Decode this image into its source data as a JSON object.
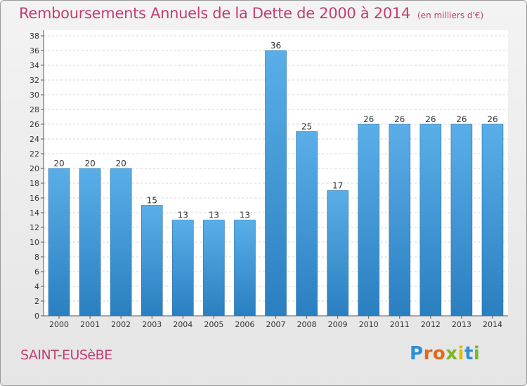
{
  "chart_data": {
    "type": "bar",
    "title": "Remboursements Annuels de la Dette de 2000 à 2014",
    "unit_label": "(en milliers d'€)",
    "categories": [
      "2000",
      "2001",
      "2002",
      "2003",
      "2004",
      "2005",
      "2006",
      "2007",
      "2008",
      "2009",
      "2010",
      "2011",
      "2012",
      "2013",
      "2014"
    ],
    "values": [
      20,
      20,
      20,
      15,
      13,
      13,
      13,
      36,
      25,
      17,
      26,
      26,
      26,
      26,
      26
    ],
    "y_ticks": [
      0,
      2,
      4,
      6,
      8,
      10,
      12,
      14,
      16,
      18,
      20,
      22,
      24,
      26,
      28,
      30,
      32,
      34,
      36,
      38
    ],
    "ylim": [
      0,
      38
    ],
    "grid": true,
    "bar_color_top": "#5aaee8",
    "bar_color_bottom": "#2a7fc0"
  },
  "footer": {
    "commune": "SAINT-EUSèBE",
    "brand": [
      "P",
      "r",
      "o",
      "x",
      "i",
      "t",
      "i"
    ],
    "brand_colors": [
      "#2a8fd6",
      "#e06a1a",
      "#e06a1a",
      "#7ab628",
      "#e6b800",
      "#2a8fd6",
      "#7ab628"
    ]
  }
}
